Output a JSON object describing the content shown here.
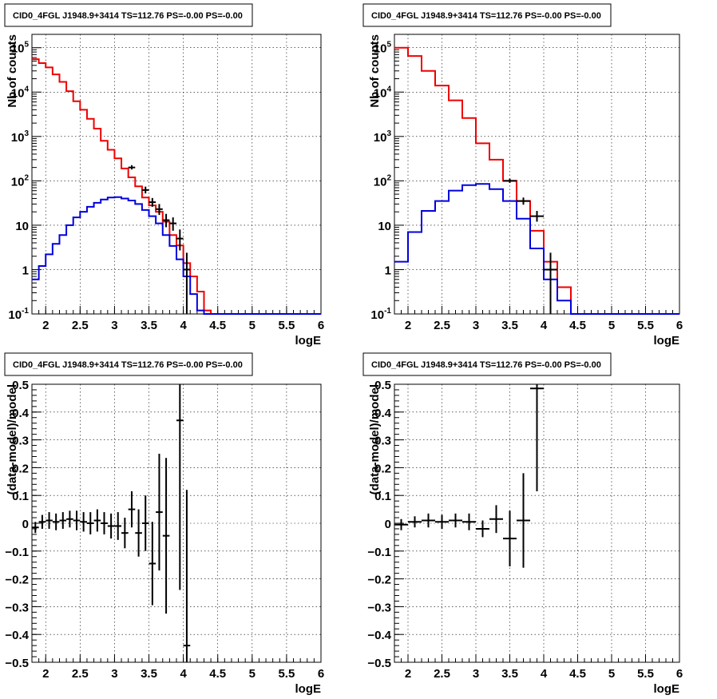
{
  "panels": [
    {
      "id": "top-left",
      "title": "CID0_4FGL J1948.9+3414 TS=112.76 PS=-0.00 PS=-0.00"
    },
    {
      "id": "top-right",
      "title": "CID0_4FGL J1948.9+3414 TS=112.76 PS=-0.00 PS=-0.00"
    },
    {
      "id": "bottom-left",
      "title": "CID0_4FGL J1948.9+3414 TS=112.76 PS=-0.00 PS=-0.00"
    },
    {
      "id": "bottom-right",
      "title": "CID0_4FGL J1948.9+3414 TS=112.76 PS=-0.00 PS=-0.00"
    }
  ],
  "colors": {
    "total_model": "#ee0000",
    "source_model": "#0000dd",
    "data": "#000000",
    "frame": "#000000"
  },
  "chart_data": [
    {
      "panel": "top-left",
      "type": "line",
      "title": "CID0_4FGL J1948.9+3414 TS=112.76 PS=-0.00 PS=-0.00",
      "xlabel": "logE",
      "ylabel": "Nb of counts",
      "log_y": true,
      "xlim": [
        1.8,
        6.0
      ],
      "ylim": [
        0.1,
        200000
      ],
      "grid": true,
      "x_ticks": [
        "2",
        "2.5",
        "3",
        "3.5",
        "4",
        "4.5",
        "5",
        "5.5",
        "6"
      ],
      "y_ticks": [
        [
          "0.1",
          "10",
          "-1"
        ],
        [
          "1",
          "1",
          ""
        ],
        [
          "10",
          "10",
          ""
        ],
        [
          "100",
          "10",
          "2"
        ],
        [
          "1000",
          "10",
          "3"
        ],
        [
          "10000",
          "10",
          "4"
        ],
        [
          "100000",
          "10",
          "5"
        ]
      ],
      "bin_width": 0.1,
      "bin_left_edges": [
        1.8,
        1.9,
        2.0,
        2.1,
        2.2,
        2.3,
        2.4,
        2.5,
        2.6,
        2.7,
        2.8,
        2.9,
        3.0,
        3.1,
        3.2,
        3.3,
        3.4,
        3.5,
        3.6,
        3.7,
        3.8,
        3.9,
        4.0,
        4.1,
        4.2,
        4.3,
        4.4,
        4.5,
        4.6,
        4.7,
        4.8,
        4.9,
        5.0,
        5.1,
        5.2,
        5.3,
        5.4,
        5.5,
        5.6,
        5.7,
        5.8,
        5.9
      ],
      "series": [
        {
          "role": "total_model",
          "values": [
            55000,
            45000,
            36000,
            25000,
            17000,
            10500,
            6200,
            4000,
            2500,
            1500,
            800,
            500,
            320,
            190,
            120,
            75,
            42,
            28,
            20,
            12,
            6,
            3.5,
            1.4,
            0.7,
            0.32,
            0.12,
            0.1,
            0.1,
            0.1,
            0.1,
            0.1,
            0.1,
            0.1,
            0.1,
            0.1,
            0.1,
            0.1,
            0.1,
            0.1,
            0.1,
            0.1,
            0.1
          ]
        },
        {
          "role": "source_model",
          "values": [
            0.6,
            1.2,
            2.2,
            3.8,
            6,
            10,
            15,
            20,
            26,
            32,
            38,
            42,
            43,
            40,
            36,
            30,
            22,
            16,
            11,
            6,
            3.4,
            1.7,
            0.7,
            0.28,
            0.12,
            0.1,
            0.1,
            0.1,
            0.1,
            0.1,
            0.1,
            0.1,
            0.1,
            0.1,
            0.1,
            0.1,
            0.1,
            0.1,
            0.1,
            0.1,
            0.1,
            0.1
          ]
        },
        {
          "role": "data",
          "points": [
            {
              "x": 3.25,
              "y": 200,
              "lo": 180,
              "hi": 225
            },
            {
              "x": 3.45,
              "y": 62,
              "lo": 52,
              "hi": 74
            },
            {
              "x": 3.55,
              "y": 33,
              "lo": 26,
              "hi": 41
            },
            {
              "x": 3.65,
              "y": 23,
              "lo": 17,
              "hi": 30
            },
            {
              "x": 3.75,
              "y": 13,
              "lo": 9,
              "hi": 18
            },
            {
              "x": 3.85,
              "y": 11,
              "lo": 7.5,
              "hi": 15
            },
            {
              "x": 3.95,
              "y": 5,
              "lo": 2.7,
              "hi": 8
            },
            {
              "x": 4.05,
              "y": 1.0,
              "lo": 0.1,
              "hi": 2.4
            }
          ]
        }
      ]
    },
    {
      "panel": "top-right",
      "type": "line",
      "title": "CID0_4FGL J1948.9+3414 TS=112.76 PS=-0.00 PS=-0.00",
      "xlabel": "logE",
      "ylabel": "Nb of counts",
      "log_y": true,
      "xlim": [
        1.8,
        6.0
      ],
      "ylim": [
        0.1,
        200000
      ],
      "grid": true,
      "x_ticks": [
        "2",
        "2.5",
        "3",
        "3.5",
        "4",
        "4.5",
        "5",
        "5.5",
        "6"
      ],
      "y_ticks": [
        [
          "0.1",
          "10",
          "-1"
        ],
        [
          "1",
          "1",
          ""
        ],
        [
          "10",
          "10",
          ""
        ],
        [
          "100",
          "10",
          "2"
        ],
        [
          "1000",
          "10",
          "3"
        ],
        [
          "10000",
          "10",
          "4"
        ],
        [
          "100000",
          "10",
          "5"
        ]
      ],
      "bin_width": 0.2,
      "bin_left_edges": [
        1.8,
        2.0,
        2.2,
        2.4,
        2.6,
        2.8,
        3.0,
        3.2,
        3.4,
        3.6,
        3.8,
        4.0,
        4.2,
        4.4,
        4.6,
        4.8,
        5.0,
        5.2,
        5.4,
        5.6,
        5.8
      ],
      "series": [
        {
          "role": "total_model",
          "values": [
            100000,
            65000,
            30000,
            14000,
            6500,
            2600,
            700,
            300,
            100,
            35,
            7.5,
            1.5,
            0.4,
            0.1,
            0.1,
            0.1,
            0.1,
            0.1,
            0.1,
            0.1,
            0.1
          ]
        },
        {
          "role": "source_model",
          "values": [
            1.5,
            7,
            21,
            35,
            60,
            80,
            85,
            65,
            35,
            14,
            3,
            0.6,
            0.2,
            0.1,
            0.1,
            0.1,
            0.1,
            0.1,
            0.1,
            0.1,
            0.1
          ]
        },
        {
          "role": "data",
          "points": [
            {
              "x": 3.5,
              "y": 100,
              "lo": 90,
              "hi": 112
            },
            {
              "x": 3.7,
              "y": 35,
              "lo": 29,
              "hi": 42
            },
            {
              "x": 3.9,
              "y": 16,
              "lo": 12,
              "hi": 21
            },
            {
              "x": 4.1,
              "y": 1.0,
              "lo": 0.1,
              "hi": 2.4
            }
          ]
        }
      ]
    },
    {
      "panel": "bottom-left",
      "type": "scatter",
      "title": "CID0_4FGL J1948.9+3414 TS=112.76 PS=-0.00 PS=-0.00",
      "xlabel": "logE",
      "ylabel": "(data-model)/model",
      "log_y": false,
      "xlim": [
        1.8,
        6.0
      ],
      "ylim": [
        -0.5,
        0.5
      ],
      "grid": true,
      "x_ticks": [
        "2",
        "2.5",
        "3",
        "3.5",
        "4",
        "4.5",
        "5",
        "5.5",
        "6"
      ],
      "y_ticks": [
        "−0.5",
        "−0.4",
        "−0.3",
        "−0.2",
        "−0.1",
        "0",
        "0.1",
        "0.2",
        "0.3",
        "0.4",
        "0.5"
      ],
      "bin_width": 0.1,
      "points": [
        {
          "x": 1.85,
          "y": -0.015,
          "err": 0.02
        },
        {
          "x": 1.95,
          "y": 0.005,
          "err": 0.025
        },
        {
          "x": 2.05,
          "y": 0.01,
          "err": 0.03
        },
        {
          "x": 2.15,
          "y": 0.005,
          "err": 0.03
        },
        {
          "x": 2.25,
          "y": 0.01,
          "err": 0.03
        },
        {
          "x": 2.35,
          "y": 0.015,
          "err": 0.03
        },
        {
          "x": 2.45,
          "y": 0.01,
          "err": 0.035
        },
        {
          "x": 2.55,
          "y": 0.005,
          "err": 0.035
        },
        {
          "x": 2.65,
          "y": 0.0,
          "err": 0.04
        },
        {
          "x": 2.75,
          "y": 0.01,
          "err": 0.04
        },
        {
          "x": 2.85,
          "y": 0.0,
          "err": 0.04
        },
        {
          "x": 2.95,
          "y": -0.01,
          "err": 0.045
        },
        {
          "x": 3.05,
          "y": -0.01,
          "err": 0.05
        },
        {
          "x": 3.15,
          "y": -0.035,
          "err": 0.055
        },
        {
          "x": 3.25,
          "y": 0.05,
          "err": 0.065
        },
        {
          "x": 3.35,
          "y": -0.035,
          "err": 0.085
        },
        {
          "x": 3.45,
          "y": 0.0,
          "err": 0.1
        },
        {
          "x": 3.55,
          "y": -0.145,
          "err": 0.15
        },
        {
          "x": 3.65,
          "y": 0.04,
          "err": 0.21
        },
        {
          "x": 3.75,
          "y": -0.045,
          "err": 0.28
        },
        {
          "x": 3.95,
          "y": 0.37,
          "err": 0.61
        },
        {
          "x": 4.05,
          "y": -0.44,
          "err": 0.56
        }
      ]
    },
    {
      "panel": "bottom-right",
      "type": "scatter",
      "title": "CID0_4FGL J1948.9+3414 TS=112.76 PS=-0.00 PS=-0.00",
      "xlabel": "logE",
      "ylabel": "(data-model)/model",
      "log_y": false,
      "xlim": [
        1.8,
        6.0
      ],
      "ylim": [
        -0.5,
        0.5
      ],
      "grid": true,
      "x_ticks": [
        "2",
        "2.5",
        "3",
        "3.5",
        "4",
        "4.5",
        "5",
        "5.5",
        "6"
      ],
      "y_ticks": [
        "−0.5",
        "−0.4",
        "−0.3",
        "−0.2",
        "−0.1",
        "0",
        "0.1",
        "0.2",
        "0.3",
        "0.4",
        "0.5"
      ],
      "bin_width": 0.2,
      "points": [
        {
          "x": 1.9,
          "y": -0.005,
          "err": 0.02
        },
        {
          "x": 2.1,
          "y": 0.005,
          "err": 0.02
        },
        {
          "x": 2.3,
          "y": 0.01,
          "err": 0.025
        },
        {
          "x": 2.5,
          "y": 0.005,
          "err": 0.025
        },
        {
          "x": 2.7,
          "y": 0.01,
          "err": 0.025
        },
        {
          "x": 2.9,
          "y": 0.005,
          "err": 0.03
        },
        {
          "x": 3.1,
          "y": -0.02,
          "err": 0.03
        },
        {
          "x": 3.3,
          "y": 0.015,
          "err": 0.05
        },
        {
          "x": 3.5,
          "y": -0.055,
          "err": 0.1
        },
        {
          "x": 3.7,
          "y": 0.01,
          "err": 0.17
        },
        {
          "x": 3.9,
          "y": 0.485,
          "err": 0.37
        }
      ]
    }
  ]
}
